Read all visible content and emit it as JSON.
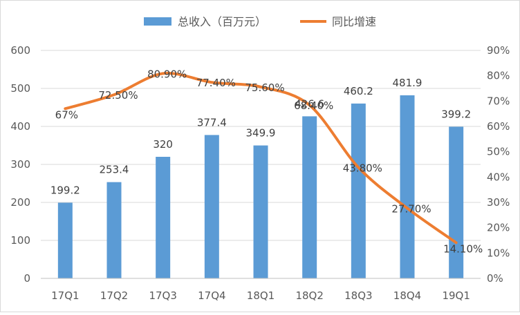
{
  "chart_data": {
    "type": "bar+line",
    "categories": [
      "17Q1",
      "17Q2",
      "17Q3",
      "17Q4",
      "18Q1",
      "18Q2",
      "18Q3",
      "18Q4",
      "19Q1"
    ],
    "series": [
      {
        "name": "总收入（百万元）",
        "type": "bar",
        "axis": "left",
        "color": "#5B9BD5",
        "values": [
          199.2,
          253.4,
          320,
          377.4,
          349.9,
          426.6,
          460.2,
          481.9,
          399.2
        ],
        "labels": [
          "199.2",
          "253.4",
          "320",
          "377.4",
          "349.9",
          "426.6",
          "460.2",
          "481.9",
          "399.2"
        ]
      },
      {
        "name": "同比增速",
        "type": "line",
        "axis": "right",
        "color": "#ED7D31",
        "values": [
          67,
          72.5,
          80.9,
          77.4,
          75.6,
          68.4,
          43.8,
          27.7,
          14.1
        ],
        "labels": [
          "67%",
          "72.50%",
          "80.90%",
          "77.40%",
          "75.60%",
          "68.40%",
          "43.80%",
          "27.70%",
          "14.10%"
        ]
      }
    ],
    "y_left": {
      "range": [
        0,
        600
      ],
      "ticks": [
        0,
        100,
        200,
        300,
        400,
        500,
        600
      ],
      "tick_labels": [
        "0",
        "100",
        "200",
        "300",
        "400",
        "500",
        "600"
      ]
    },
    "y_right": {
      "range": [
        0,
        90
      ],
      "ticks": [
        0,
        10,
        20,
        30,
        40,
        50,
        60,
        70,
        80,
        90
      ],
      "tick_labels": [
        "0%",
        "10%",
        "20%",
        "30%",
        "40%",
        "50%",
        "60%",
        "70%",
        "80%",
        "90%"
      ]
    },
    "legend": {
      "position": "top"
    },
    "grid": true,
    "gridColor": "#d9d9d9",
    "axisColor": "#bfbfbf"
  }
}
